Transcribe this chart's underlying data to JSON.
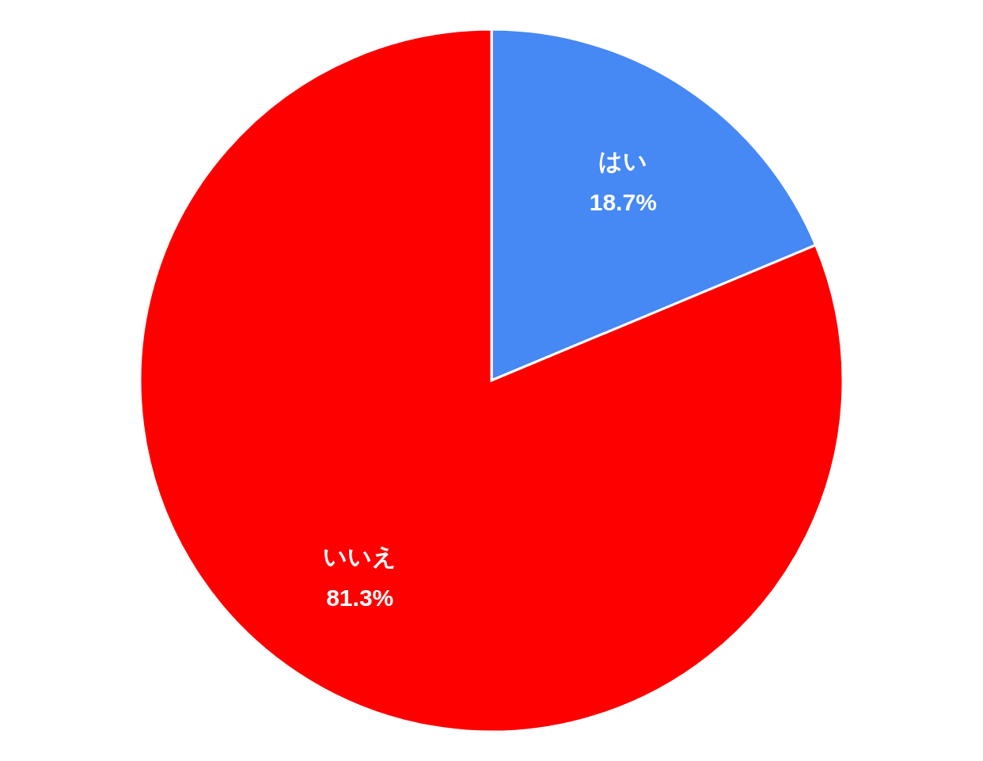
{
  "chart_data": {
    "type": "pie",
    "categories": [
      "はい",
      "いいえ"
    ],
    "values": [
      18.7,
      81.3
    ],
    "colors": [
      "#4688f4",
      "#ff0000"
    ],
    "value_labels": [
      "18.7%",
      "81.3%"
    ]
  }
}
